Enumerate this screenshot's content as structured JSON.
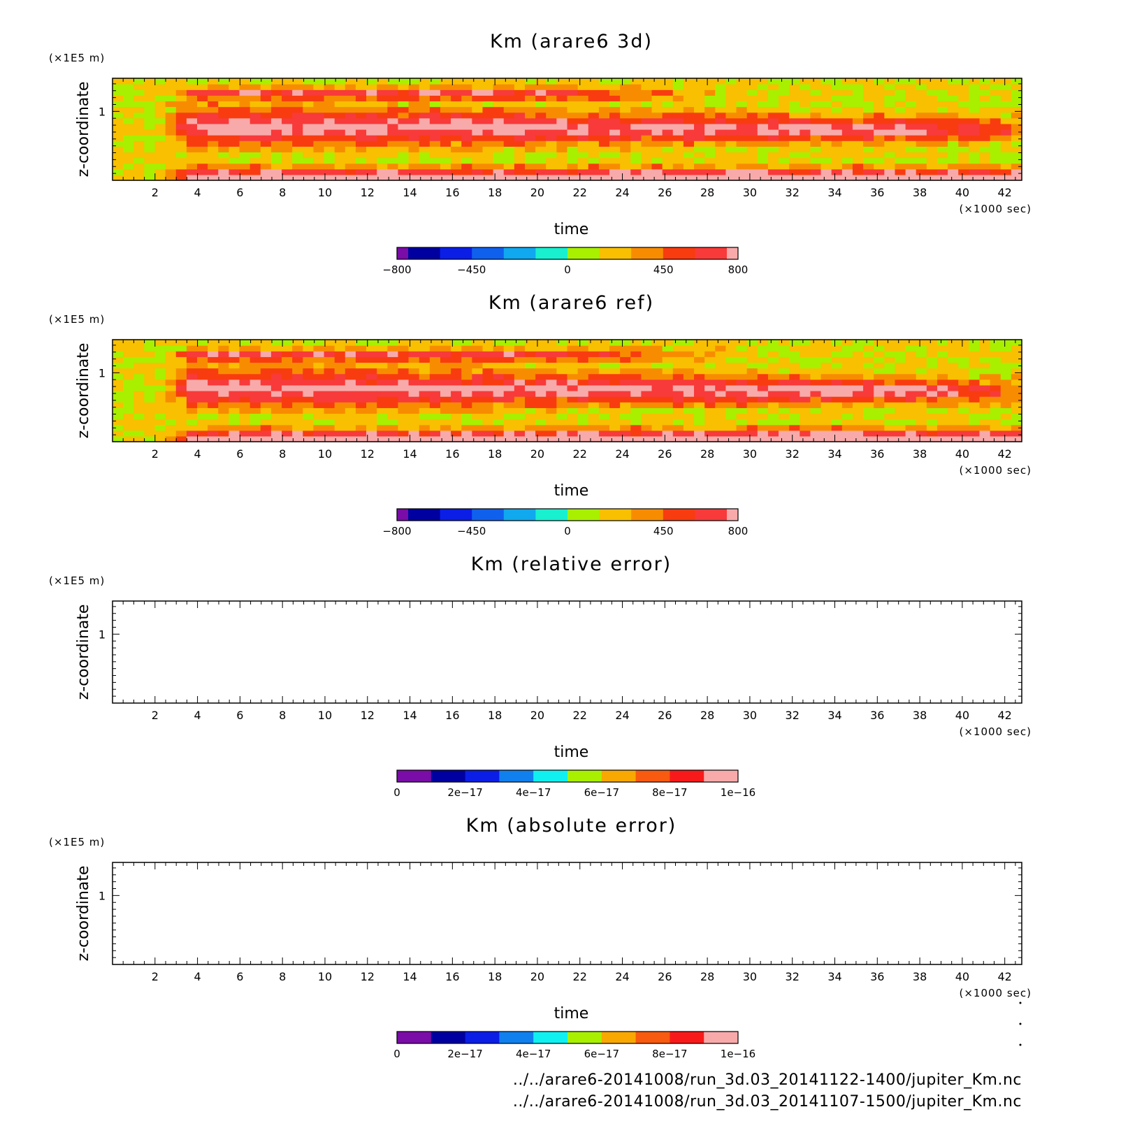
{
  "chart_data": [
    {
      "type": "heatmap",
      "title": "Km (arare6 3d)",
      "xlabel": "time",
      "ylabel": "z-coordinate",
      "x_unit": "(×1000 sec)",
      "y_unit": "(×1E5 m)",
      "xlim": [
        0,
        42.8
      ],
      "ylim": [
        0,
        1.48
      ],
      "x_ticks": [
        "2",
        "4",
        "6",
        "8",
        "10",
        "12",
        "14",
        "16",
        "18",
        "20",
        "22",
        "24",
        "26",
        "28",
        "30",
        "32",
        "34",
        "36",
        "38",
        "40",
        "42"
      ],
      "y_ticks": [
        "1"
      ],
      "filled": true,
      "colorbar": {
        "min": -800,
        "max": 800,
        "tick_values": [
          -800,
          -450,
          0,
          450,
          800
        ],
        "tick_labels": [
          "−800",
          "−450",
          "0",
          "450",
          "800"
        ],
        "colors": [
          "#7a0ca8",
          "#0000a0",
          "#0a1ee6",
          "#1060ee",
          "#10a8ee",
          "#18f0d0",
          "#a8f000",
          "#f8c000",
          "#f88c00",
          "#f83c10",
          "#f83a3a",
          "#f8aaaa"
        ]
      }
    },
    {
      "type": "heatmap",
      "title": "Km (arare6 ref)",
      "xlabel": "time",
      "ylabel": "z-coordinate",
      "x_unit": "(×1000 sec)",
      "y_unit": "(×1E5 m)",
      "xlim": [
        0,
        42.8
      ],
      "ylim": [
        0,
        1.48
      ],
      "x_ticks": [
        "2",
        "4",
        "6",
        "8",
        "10",
        "12",
        "14",
        "16",
        "18",
        "20",
        "22",
        "24",
        "26",
        "28",
        "30",
        "32",
        "34",
        "36",
        "38",
        "40",
        "42"
      ],
      "y_ticks": [
        "1"
      ],
      "filled": true,
      "colorbar": {
        "min": -800,
        "max": 800,
        "tick_values": [
          -800,
          -450,
          0,
          450,
          800
        ],
        "tick_labels": [
          "−800",
          "−450",
          "0",
          "450",
          "800"
        ],
        "colors": [
          "#7a0ca8",
          "#0000a0",
          "#0a1ee6",
          "#1060ee",
          "#10a8ee",
          "#18f0d0",
          "#a8f000",
          "#f8c000",
          "#f88c00",
          "#f83c10",
          "#f83a3a",
          "#f8aaaa"
        ]
      }
    },
    {
      "type": "heatmap",
      "title": "Km (relative error)",
      "xlabel": "time",
      "ylabel": "z-coordinate",
      "x_unit": "(×1000 sec)",
      "y_unit": "(×1E5 m)",
      "xlim": [
        0,
        42.8
      ],
      "ylim": [
        0,
        1.48
      ],
      "x_ticks": [
        "2",
        "4",
        "6",
        "8",
        "10",
        "12",
        "14",
        "16",
        "18",
        "20",
        "22",
        "24",
        "26",
        "28",
        "30",
        "32",
        "34",
        "36",
        "38",
        "40",
        "42"
      ],
      "y_ticks": [
        "1"
      ],
      "filled": false,
      "colorbar": {
        "min": 0,
        "max": 1e-16,
        "tick_values": [
          0,
          2e-17,
          4e-17,
          6e-17,
          8e-17,
          1e-16
        ],
        "tick_labels": [
          "0",
          "2e−17",
          "4e−17",
          "6e−17",
          "8e−17",
          "1e−16"
        ],
        "colors": [
          "#7a0ca8",
          "#0000a0",
          "#0a1ee6",
          "#1080ee",
          "#10f0f0",
          "#a8f000",
          "#f8a800",
          "#f85a10",
          "#f81a1a",
          "#f8aaaa"
        ]
      }
    },
    {
      "type": "heatmap",
      "title": "Km (absolute error)",
      "xlabel": "time",
      "ylabel": "z-coordinate",
      "x_unit": "(×1000 sec)",
      "y_unit": "(×1E5 m)",
      "xlim": [
        0,
        42.8
      ],
      "ylim": [
        0,
        1.48
      ],
      "x_ticks": [
        "2",
        "4",
        "6",
        "8",
        "10",
        "12",
        "14",
        "16",
        "18",
        "20",
        "22",
        "24",
        "26",
        "28",
        "30",
        "32",
        "34",
        "36",
        "38",
        "40",
        "42"
      ],
      "y_ticks": [
        "1"
      ],
      "filled": false,
      "colorbar": {
        "min": 0,
        "max": 1e-16,
        "tick_values": [
          0,
          2e-17,
          4e-17,
          6e-17,
          8e-17,
          1e-16
        ],
        "tick_labels": [
          "0",
          "2e−17",
          "4e−17",
          "6e−17",
          "8e−17",
          "1e−16"
        ],
        "colors": [
          "#7a0ca8",
          "#0000a0",
          "#0a1ee6",
          "#1080ee",
          "#10f0f0",
          "#a8f000",
          "#f8a800",
          "#f85a10",
          "#f81a1a",
          "#f8aaaa"
        ]
      }
    }
  ],
  "footer": {
    "files": [
      "../../arare6-20141008/run_3d.03_20141122-1400/jupiter_Km.nc",
      "../../arare6-20141008/run_3d.03_20141107-1500/jupiter_Km.nc"
    ]
  }
}
